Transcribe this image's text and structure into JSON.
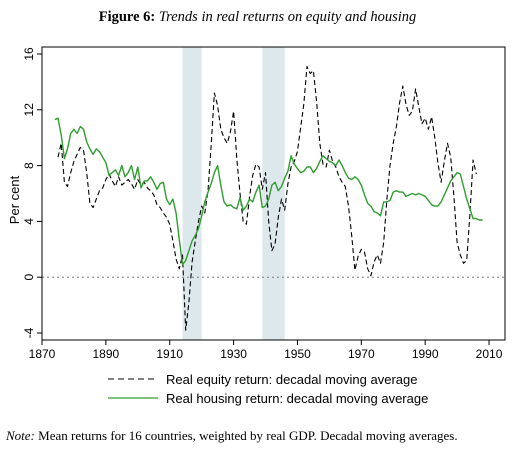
{
  "figure": {
    "label": "Figure 6:",
    "title": "Trends in real returns on equity and housing"
  },
  "note": {
    "label": "Note:",
    "text": " Mean returns for 16 countries, weighted by real GDP. Decadal moving averages."
  },
  "chart_data": {
    "type": "line",
    "title": "Trends in real returns on equity and housing",
    "xlabel": "",
    "ylabel": "Per cent",
    "xlim": [
      1870,
      2015
    ],
    "ylim": [
      -4.5,
      16.5
    ],
    "xticks": [
      1870,
      1890,
      1910,
      1930,
      1950,
      1970,
      1990,
      2010
    ],
    "yticks": [
      -4,
      0,
      4,
      8,
      12,
      16
    ],
    "ytick_labels": [
      "-4",
      "0",
      "4",
      "8",
      "12",
      "16"
    ],
    "reference_line": {
      "y": 0,
      "style": "dotted"
    },
    "shaded_periods": [
      {
        "start": 1914,
        "end": 1920
      },
      {
        "start": 1939,
        "end": 1946
      }
    ],
    "grid": false,
    "legend_position": "bottom",
    "series": [
      {
        "name": "Real equity return: decadal moving average",
        "color": "#000000",
        "style": "dashed",
        "points": [
          [
            1875,
            8.6
          ],
          [
            1876,
            9.6
          ],
          [
            1877,
            6.8
          ],
          [
            1878,
            6.5
          ],
          [
            1879,
            7.5
          ],
          [
            1880,
            8.3
          ],
          [
            1881,
            8.8
          ],
          [
            1882,
            9.3
          ],
          [
            1883,
            9.1
          ],
          [
            1884,
            7.5
          ],
          [
            1885,
            5.3
          ],
          [
            1886,
            5.0
          ],
          [
            1887,
            5.6
          ],
          [
            1888,
            6.2
          ],
          [
            1889,
            6.4
          ],
          [
            1890,
            7.0
          ],
          [
            1891,
            7.4
          ],
          [
            1892,
            6.9
          ],
          [
            1893,
            6.5
          ],
          [
            1894,
            7.2
          ],
          [
            1895,
            6.6
          ],
          [
            1896,
            6.8
          ],
          [
            1897,
            7.0
          ],
          [
            1898,
            6.7
          ],
          [
            1899,
            6.3
          ],
          [
            1900,
            7.0
          ],
          [
            1901,
            6.6
          ],
          [
            1902,
            6.8
          ],
          [
            1903,
            6.4
          ],
          [
            1904,
            6.2
          ],
          [
            1905,
            5.9
          ],
          [
            1906,
            5.2
          ],
          [
            1907,
            5.0
          ],
          [
            1908,
            4.6
          ],
          [
            1909,
            4.3
          ],
          [
            1910,
            3.8
          ],
          [
            1911,
            2.6
          ],
          [
            1912,
            1.3
          ],
          [
            1913,
            0.6
          ],
          [
            1914,
            1.6
          ],
          [
            1915,
            -3.8
          ],
          [
            1916,
            -1.8
          ],
          [
            1917,
            1.1
          ],
          [
            1918,
            2.6
          ],
          [
            1919,
            4.0
          ],
          [
            1920,
            5.1
          ],
          [
            1921,
            4.6
          ],
          [
            1922,
            6.2
          ],
          [
            1923,
            9.5
          ],
          [
            1924,
            13.2
          ],
          [
            1925,
            12.3
          ],
          [
            1926,
            10.6
          ],
          [
            1927,
            10.0
          ],
          [
            1928,
            9.6
          ],
          [
            1929,
            10.4
          ],
          [
            1930,
            11.9
          ],
          [
            1931,
            8.5
          ],
          [
            1932,
            6.0
          ],
          [
            1933,
            4.0
          ],
          [
            1934,
            3.8
          ],
          [
            1935,
            5.8
          ],
          [
            1936,
            7.3
          ],
          [
            1937,
            8.1
          ],
          [
            1938,
            7.9
          ],
          [
            1939,
            6.3
          ],
          [
            1940,
            7.5
          ],
          [
            1941,
            4.0
          ],
          [
            1942,
            1.9
          ],
          [
            1943,
            2.4
          ],
          [
            1944,
            4.3
          ],
          [
            1945,
            5.6
          ],
          [
            1946,
            4.8
          ],
          [
            1947,
            6.7
          ],
          [
            1948,
            7.9
          ],
          [
            1949,
            8.3
          ],
          [
            1950,
            9.0
          ],
          [
            1951,
            10.7
          ],
          [
            1952,
            12.4
          ],
          [
            1953,
            15.1
          ],
          [
            1954,
            14.6
          ],
          [
            1955,
            14.8
          ],
          [
            1956,
            12.6
          ],
          [
            1957,
            9.6
          ],
          [
            1958,
            8.1
          ],
          [
            1959,
            7.9
          ],
          [
            1960,
            9.1
          ],
          [
            1961,
            8.3
          ],
          [
            1962,
            7.9
          ],
          [
            1963,
            7.2
          ],
          [
            1964,
            6.8
          ],
          [
            1965,
            6.5
          ],
          [
            1966,
            5.1
          ],
          [
            1967,
            3.0
          ],
          [
            1968,
            0.5
          ],
          [
            1969,
            1.5
          ],
          [
            1970,
            2.0
          ],
          [
            1971,
            1.8
          ],
          [
            1972,
            0.6
          ],
          [
            1973,
            0.1
          ],
          [
            1974,
            1.1
          ],
          [
            1975,
            1.6
          ],
          [
            1976,
            1.0
          ],
          [
            1977,
            2.5
          ],
          [
            1978,
            5.6
          ],
          [
            1979,
            8.0
          ],
          [
            1980,
            9.6
          ],
          [
            1981,
            10.8
          ],
          [
            1982,
            12.5
          ],
          [
            1983,
            13.7
          ],
          [
            1984,
            12.4
          ],
          [
            1985,
            11.6
          ],
          [
            1986,
            11.9
          ],
          [
            1987,
            13.5
          ],
          [
            1988,
            12.2
          ],
          [
            1989,
            11.0
          ],
          [
            1990,
            11.4
          ],
          [
            1991,
            10.6
          ],
          [
            1992,
            11.5
          ],
          [
            1993,
            10.0
          ],
          [
            1994,
            8.2
          ],
          [
            1995,
            6.8
          ],
          [
            1996,
            8.3
          ],
          [
            1997,
            9.6
          ],
          [
            1998,
            8.6
          ],
          [
            1999,
            5.8
          ],
          [
            2000,
            2.5
          ],
          [
            2001,
            1.6
          ],
          [
            2002,
            1.0
          ],
          [
            2003,
            1.2
          ],
          [
            2004,
            4.5
          ],
          [
            2005,
            8.4
          ],
          [
            2006,
            7.4
          ]
        ]
      },
      {
        "name": "Real housing return: decadal moving average",
        "color": "#2e9e2e",
        "style": "solid",
        "points": [
          [
            1874,
            11.3
          ],
          [
            1875,
            11.4
          ],
          [
            1876,
            10.2
          ],
          [
            1877,
            8.5
          ],
          [
            1878,
            9.2
          ],
          [
            1879,
            10.3
          ],
          [
            1880,
            10.6
          ],
          [
            1881,
            10.3
          ],
          [
            1882,
            10.8
          ],
          [
            1883,
            10.6
          ],
          [
            1884,
            9.7
          ],
          [
            1885,
            9.2
          ],
          [
            1886,
            8.8
          ],
          [
            1887,
            9.2
          ],
          [
            1888,
            9.0
          ],
          [
            1889,
            8.6
          ],
          [
            1890,
            8.2
          ],
          [
            1891,
            7.3
          ],
          [
            1892,
            7.5
          ],
          [
            1893,
            7.7
          ],
          [
            1894,
            7.3
          ],
          [
            1895,
            8.0
          ],
          [
            1896,
            7.2
          ],
          [
            1897,
            7.5
          ],
          [
            1898,
            8.0
          ],
          [
            1899,
            7.0
          ],
          [
            1900,
            7.9
          ],
          [
            1901,
            6.4
          ],
          [
            1902,
            6.9
          ],
          [
            1903,
            6.9
          ],
          [
            1904,
            7.2
          ],
          [
            1905,
            6.8
          ],
          [
            1906,
            6.3
          ],
          [
            1907,
            6.7
          ],
          [
            1908,
            6.8
          ],
          [
            1909,
            5.6
          ],
          [
            1910,
            5.2
          ],
          [
            1911,
            5.6
          ],
          [
            1912,
            4.6
          ],
          [
            1913,
            2.7
          ],
          [
            1914,
            0.9
          ],
          [
            1915,
            1.2
          ],
          [
            1916,
            1.9
          ],
          [
            1917,
            2.6
          ],
          [
            1918,
            3.0
          ],
          [
            1919,
            3.5
          ],
          [
            1920,
            4.4
          ],
          [
            1921,
            5.4
          ],
          [
            1922,
            6.1
          ],
          [
            1923,
            6.7
          ],
          [
            1924,
            7.5
          ],
          [
            1925,
            8.0
          ],
          [
            1926,
            6.6
          ],
          [
            1927,
            5.4
          ],
          [
            1928,
            5.1
          ],
          [
            1929,
            5.2
          ],
          [
            1930,
            5.0
          ],
          [
            1931,
            4.9
          ],
          [
            1932,
            5.7
          ],
          [
            1933,
            4.8
          ],
          [
            1934,
            5.1
          ],
          [
            1935,
            5.6
          ],
          [
            1936,
            5.4
          ],
          [
            1937,
            6.1
          ],
          [
            1938,
            6.6
          ],
          [
            1939,
            5.0
          ],
          [
            1940,
            5.1
          ],
          [
            1941,
            5.6
          ],
          [
            1942,
            6.6
          ],
          [
            1943,
            6.8
          ],
          [
            1944,
            6.2
          ],
          [
            1945,
            6.5
          ],
          [
            1946,
            7.1
          ],
          [
            1947,
            7.6
          ],
          [
            1948,
            8.7
          ],
          [
            1949,
            8.1
          ],
          [
            1950,
            7.8
          ],
          [
            1951,
            7.5
          ],
          [
            1952,
            7.6
          ],
          [
            1953,
            7.9
          ],
          [
            1954,
            7.9
          ],
          [
            1955,
            7.5
          ],
          [
            1956,
            7.8
          ],
          [
            1957,
            8.3
          ],
          [
            1958,
            8.7
          ],
          [
            1959,
            8.5
          ],
          [
            1960,
            8.3
          ],
          [
            1961,
            8.2
          ],
          [
            1962,
            8.0
          ],
          [
            1963,
            8.4
          ],
          [
            1964,
            8.0
          ],
          [
            1965,
            7.5
          ],
          [
            1966,
            7.1
          ],
          [
            1967,
            7.0
          ],
          [
            1968,
            7.2
          ],
          [
            1969,
            7.0
          ],
          [
            1970,
            6.6
          ],
          [
            1971,
            5.9
          ],
          [
            1972,
            5.3
          ],
          [
            1973,
            5.1
          ],
          [
            1974,
            4.7
          ],
          [
            1975,
            4.6
          ],
          [
            1976,
            4.4
          ],
          [
            1977,
            5.4
          ],
          [
            1978,
            5.4
          ],
          [
            1979,
            5.5
          ],
          [
            1980,
            6.1
          ],
          [
            1981,
            6.2
          ],
          [
            1982,
            6.1
          ],
          [
            1983,
            6.1
          ],
          [
            1984,
            5.8
          ],
          [
            1985,
            5.9
          ],
          [
            1986,
            6.0
          ],
          [
            1987,
            5.9
          ],
          [
            1988,
            6.0
          ],
          [
            1989,
            5.9
          ],
          [
            1990,
            5.8
          ],
          [
            1991,
            5.5
          ],
          [
            1992,
            5.2
          ],
          [
            1993,
            5.1
          ],
          [
            1994,
            5.1
          ],
          [
            1995,
            5.4
          ],
          [
            1996,
            5.9
          ],
          [
            1997,
            6.4
          ],
          [
            1998,
            6.9
          ],
          [
            1999,
            7.2
          ],
          [
            2000,
            7.5
          ],
          [
            2001,
            7.4
          ],
          [
            2002,
            6.5
          ],
          [
            2003,
            5.6
          ],
          [
            2004,
            4.9
          ],
          [
            2005,
            4.2
          ],
          [
            2006,
            4.2
          ],
          [
            2007,
            4.1
          ],
          [
            2008,
            4.1
          ]
        ]
      }
    ]
  }
}
